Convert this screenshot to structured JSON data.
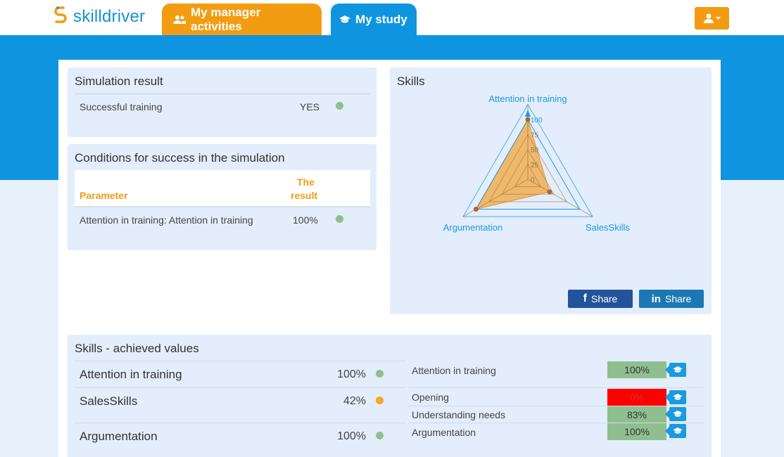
{
  "brand": {
    "name": "skilldriver"
  },
  "nav": {
    "tabs": [
      {
        "label": "My manager activities",
        "icon": "group-icon",
        "color": "#f39c12"
      },
      {
        "label": "My study",
        "icon": "graduation-cap-icon",
        "color": "#0f95e0"
      }
    ],
    "user_menu_icon": "user-icon"
  },
  "simulation_result": {
    "title": "Simulation result",
    "rows": [
      {
        "label": "Successful training",
        "value": "YES",
        "status": "green"
      }
    ]
  },
  "conditions": {
    "title": "Conditions for success in the simulation",
    "headers": {
      "parameter": "Parameter",
      "result_line1": "The",
      "result_line2": "result"
    },
    "rows": [
      {
        "parameter": "Attention in training: Attention in training",
        "result": "100%",
        "status": "green"
      }
    ]
  },
  "skills_chart": {
    "title": "Skills",
    "share_facebook": "Share",
    "share_linkedin": "Share",
    "chart_data": {
      "type": "radar",
      "axes": [
        "Attention in training",
        "SalesSkills",
        "Argumentation"
      ],
      "ticks": [
        "100",
        "75",
        "50",
        "25",
        "0"
      ],
      "rmax": 100,
      "values": [
        100,
        42,
        100
      ],
      "fill_color": "#f0b86a",
      "point_color": "#b5651d"
    }
  },
  "achieved": {
    "title": "Skills - achieved values",
    "skills": [
      {
        "name": "Attention in training",
        "value": "100%",
        "status": "green"
      },
      {
        "name": "SalesSkills",
        "value": "42%",
        "status": "orange"
      },
      {
        "name": "Argumentation",
        "value": "100%",
        "status": "green"
      }
    ],
    "subskills": [
      {
        "name": "Attention in training",
        "value": "100%",
        "status": "green",
        "level": 1.0
      },
      {
        "name": "Opening",
        "value": "0%",
        "status": "red",
        "level": 0
      },
      {
        "name": "Understanding needs",
        "value": "83%",
        "status": "green",
        "level": 0.83
      },
      {
        "name": "Argumentation",
        "value": "100%",
        "status": "green",
        "level": 1.0
      }
    ]
  }
}
